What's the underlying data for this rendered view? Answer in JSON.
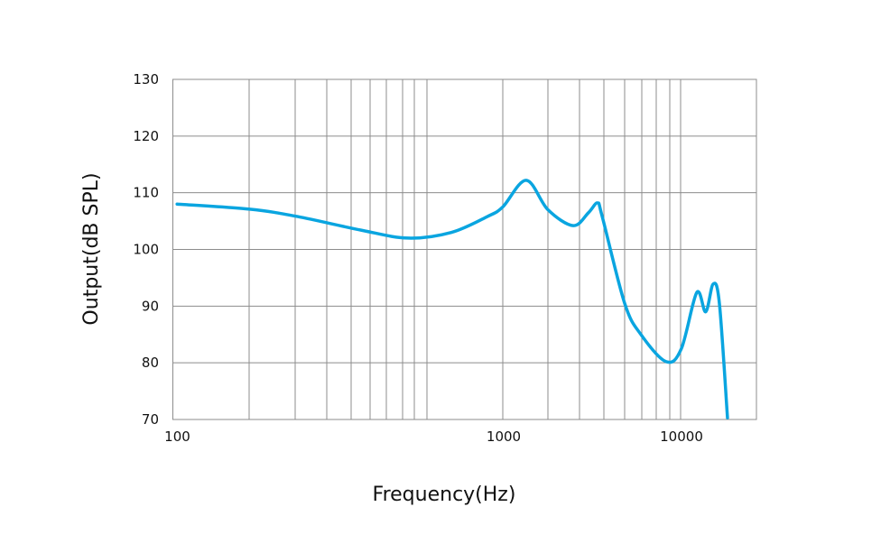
{
  "chart_data": {
    "type": "line",
    "title": "",
    "xlabel": "Frequency(Hz)",
    "ylabel": "Output(dB SPL)",
    "x_scale": "log",
    "xlim": [
      100,
      26000
    ],
    "ylim": [
      70,
      130
    ],
    "x_tick_labels": [
      "100",
      "1000",
      "10000"
    ],
    "x_tick_values": [
      100,
      1000,
      10000
    ],
    "y_ticks": [
      70,
      80,
      90,
      100,
      110,
      120,
      130
    ],
    "grid": true,
    "legend": "none",
    "line_color": "#0aa5e0",
    "grid_color": "#8c8c8c",
    "series": [
      {
        "x": [
          103,
          171,
          239,
          372,
          516,
          698,
          898,
          1000,
          1355,
          1795,
          2488,
          3036,
          3410,
          3624,
          4845,
          5980,
          8295,
          10100,
          12330,
          13840,
          15240,
          16520,
          18350
        ],
        "y": [
          108.0,
          107.1,
          105.8,
          103.4,
          102.0,
          103.0,
          105.8,
          107.5,
          112.2,
          107.0,
          104.2,
          106.5,
          108.2,
          105.8,
          90.5,
          85.0,
          80.2,
          82.5,
          92.4,
          89.0,
          93.9,
          90.5,
          70.3
        ]
      }
    ]
  }
}
